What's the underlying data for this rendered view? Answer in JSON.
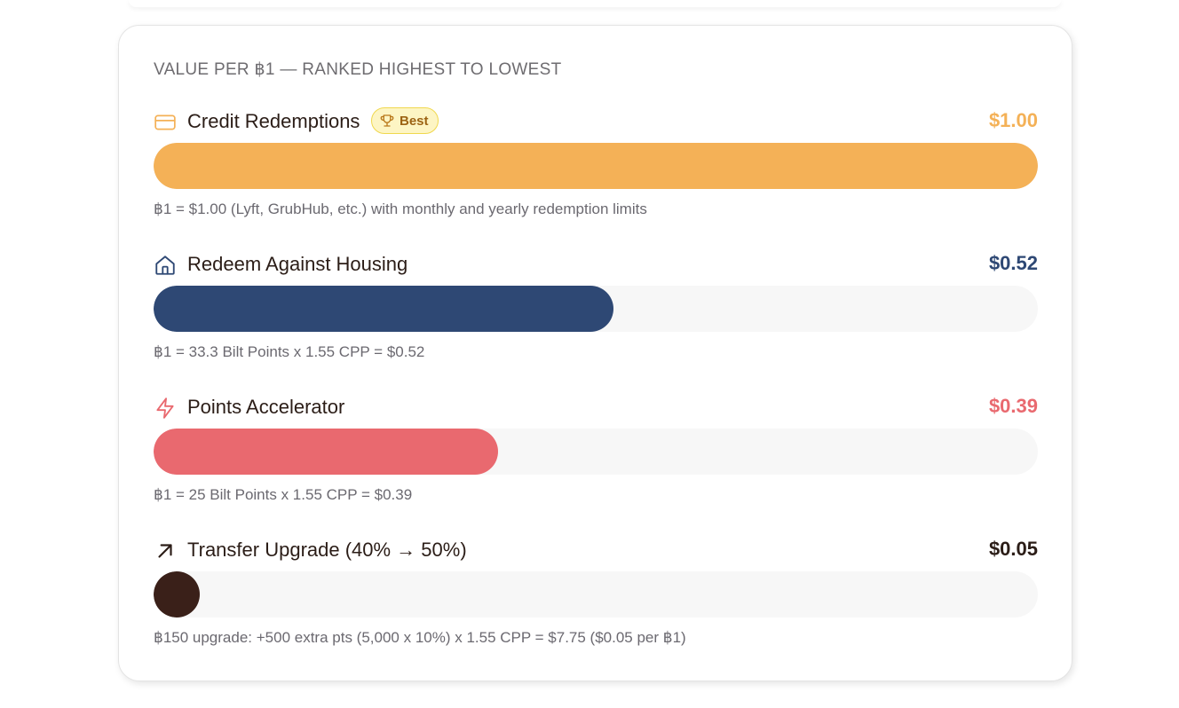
{
  "card": {
    "title": "Value per ฿1 — Ranked Highest to Lowest"
  },
  "colors": {
    "gold": "#f4b157",
    "navy": "#2e4874",
    "coral": "#e9696f",
    "dark": "#3a2019",
    "track": "#f7f7f7"
  },
  "chart_data": {
    "type": "bar",
    "orientation": "horizontal",
    "title": "Value per ฿1 — Ranked Highest to Lowest",
    "xlim": [
      0,
      1.0
    ],
    "categories": [
      "Credit Redemptions",
      "Redeem Against Housing",
      "Points Accelerator",
      "Transfer Upgrade (40% → 50%)"
    ],
    "values": [
      1.0,
      0.52,
      0.39,
      0.05
    ],
    "value_labels": [
      "$1.00",
      "$0.52",
      "$0.39",
      "$0.05"
    ],
    "colors": [
      "#f4b157",
      "#2e4874",
      "#e9696f",
      "#3a2019"
    ],
    "icons": [
      "credit-card-icon",
      "house-icon",
      "lightning-icon",
      "arrow-up-right-icon"
    ],
    "badges": [
      "Best",
      "",
      "",
      ""
    ],
    "badge_icon": "trophy-icon",
    "notes": [
      "฿1 = $1.00 (Lyft, GrubHub, etc.) with monthly and yearly redemption limits",
      "฿1 = 33.3 Bilt Points x 1.55 CPP = $0.52",
      "฿1 = 25 Bilt Points x 1.55 CPP = $0.39",
      "฿150 upgrade: +500 extra pts (5,000 x 10%) x 1.55 CPP = $7.75 ($0.05 per ฿1)"
    ]
  }
}
